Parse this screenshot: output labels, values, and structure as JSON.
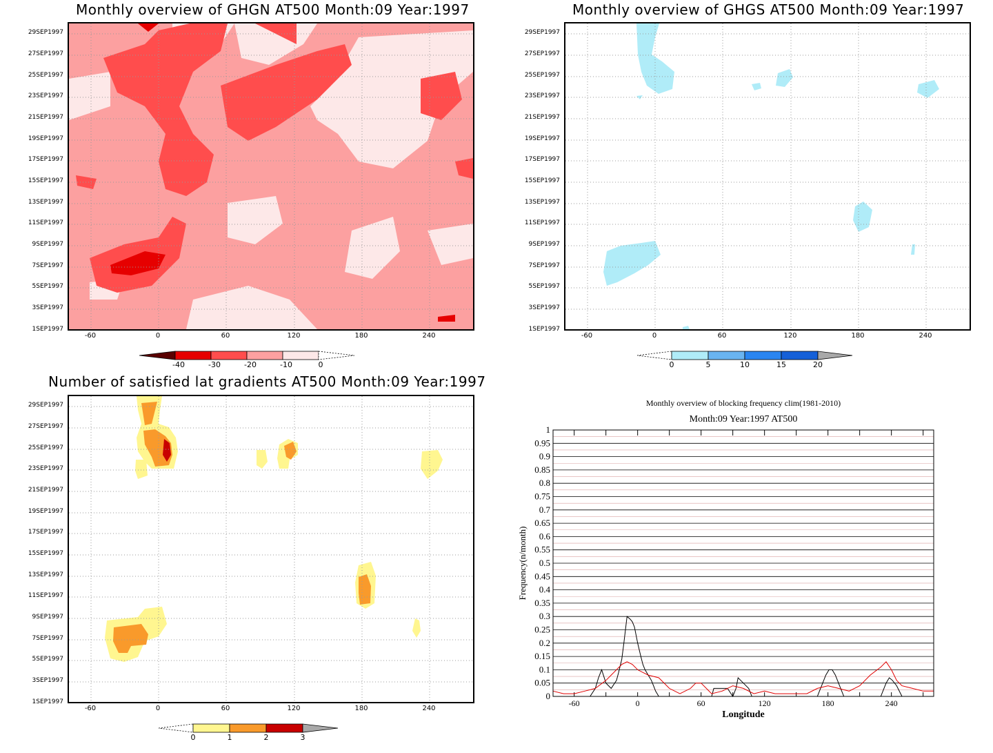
{
  "chart_data": [
    {
      "type": "heatmap",
      "title": "Monthly overview of GHGN AT500 Month:09 Year:1997",
      "x_ticks": [
        "-60",
        "0",
        "60",
        "120",
        "180",
        "240"
      ],
      "y_ticks": [
        "1SEP1997",
        "3SEP1997",
        "5SEP1997",
        "7SEP1997",
        "9SEP1997",
        "11SEP1997",
        "13SEP1997",
        "15SEP1997",
        "17SEP1997",
        "19SEP1997",
        "21SEP1997",
        "23SEP1997",
        "25SEP1997",
        "27SEP1997",
        "29SEP1997"
      ],
      "colorbar": [
        "-40",
        "-30",
        "-20",
        "-10",
        "0"
      ],
      "colors": [
        "#5a0000",
        "#e60000",
        "#ff4d4d",
        "#fca0a0",
        "#fde8e8"
      ],
      "grid": true
    },
    {
      "type": "heatmap",
      "title": "Monthly overview of GHGS AT500 Month:09 Year:1997",
      "x_ticks": [
        "-60",
        "0",
        "60",
        "120",
        "180",
        "240"
      ],
      "y_ticks": [
        "1SEP1997",
        "3SEP1997",
        "5SEP1997",
        "7SEP1997",
        "9SEP1997",
        "11SEP1997",
        "13SEP1997",
        "15SEP1997",
        "17SEP1997",
        "19SEP1997",
        "21SEP1997",
        "23SEP1997",
        "25SEP1997",
        "27SEP1997",
        "29SEP1997"
      ],
      "colorbar": [
        "0",
        "5",
        "10",
        "15",
        "20"
      ],
      "colors": [
        "#b0ecf8",
        "#6ab4f0",
        "#2a85f0",
        "#1560d8",
        "#a9a9a9"
      ],
      "grid": true
    },
    {
      "type": "heatmap",
      "title": "Number of satisfied lat gradients AT500 Month:09 Year:1997",
      "x_ticks": [
        "-60",
        "0",
        "60",
        "120",
        "180",
        "240"
      ],
      "y_ticks": [
        "1SEP1997",
        "3SEP1997",
        "5SEP1997",
        "7SEP1997",
        "9SEP1997",
        "11SEP1997",
        "13SEP1997",
        "15SEP1997",
        "17SEP1997",
        "19SEP1997",
        "21SEP1997",
        "23SEP1997",
        "25SEP1997",
        "27SEP1997",
        "29SEP1997"
      ],
      "colorbar": [
        "0",
        "1",
        "2",
        "3"
      ],
      "colors": [
        "#fff690",
        "#f99a2b",
        "#c80000",
        "#a9a9a9"
      ],
      "grid": true
    },
    {
      "type": "line",
      "title": "Monthly overview of blocking frequency clim(1981-2010)",
      "subtitle": "Month:09 Year:1997  AT500",
      "xlabel": "Longitude",
      "ylabel": "Frequency(n/month)",
      "x_ticks": [
        "-60",
        "0",
        "60",
        "120",
        "180",
        "240"
      ],
      "y_ticks": [
        "0",
        "0.05",
        "0.1",
        "0.15",
        "0.2",
        "0.25",
        "0.3",
        "0.35",
        "0.4",
        "0.45",
        "0.5",
        "0.55",
        "0.6",
        "0.65",
        "0.7",
        "0.75",
        "0.8",
        "0.85",
        "0.9",
        "0.95",
        "1"
      ],
      "xlim": [
        -80,
        280
      ],
      "ylim": [
        0,
        1
      ],
      "series": [
        {
          "color": "#000000",
          "x": [
            -80,
            -45,
            -40,
            -37,
            -34,
            -30,
            -25,
            -20,
            -18,
            -15,
            -13,
            -10,
            -7,
            -5,
            -3,
            0,
            3,
            5,
            7,
            10,
            13,
            15,
            17,
            20,
            25,
            30,
            70,
            72,
            75,
            80,
            85,
            90,
            93,
            95,
            100,
            105,
            108,
            110,
            115,
            170,
            173,
            175,
            178,
            181,
            184,
            187,
            190,
            195,
            230,
            233,
            235,
            238,
            241,
            245,
            250,
            280
          ],
          "y": [
            0,
            0,
            0.03,
            0.07,
            0.1,
            0.05,
            0.03,
            0.06,
            0.09,
            0.14,
            0.2,
            0.3,
            0.29,
            0.28,
            0.26,
            0.2,
            0.15,
            0.12,
            0.1,
            0.08,
            0.06,
            0.04,
            0.02,
            0,
            0,
            0,
            0,
            0.03,
            0.03,
            0.03,
            0.03,
            0,
            0.03,
            0.07,
            0.05,
            0.03,
            0,
            0,
            0,
            0,
            0.03,
            0.05,
            0.08,
            0.1,
            0.1,
            0.08,
            0.05,
            0,
            0,
            0.03,
            0.05,
            0.07,
            0.06,
            0.04,
            0,
            0
          ]
        },
        {
          "color": "#e00000",
          "x": [
            -80,
            -70,
            -60,
            -50,
            -40,
            -30,
            -25,
            -20,
            -15,
            -10,
            -5,
            0,
            5,
            10,
            20,
            30,
            40,
            50,
            55,
            60,
            65,
            70,
            80,
            90,
            100,
            110,
            120,
            130,
            140,
            150,
            160,
            170,
            180,
            190,
            200,
            210,
            220,
            230,
            235,
            240,
            245,
            250,
            260,
            270,
            280
          ],
          "y": [
            0.02,
            0.01,
            0.01,
            0.02,
            0.03,
            0.06,
            0.08,
            0.1,
            0.12,
            0.13,
            0.12,
            0.1,
            0.09,
            0.08,
            0.07,
            0.03,
            0.01,
            0.03,
            0.05,
            0.05,
            0.03,
            0.01,
            0.02,
            0.04,
            0.03,
            0.01,
            0.02,
            0.01,
            0.01,
            0.01,
            0.01,
            0.03,
            0.04,
            0.03,
            0.02,
            0.04,
            0.08,
            0.11,
            0.13,
            0.1,
            0.06,
            0.04,
            0.03,
            0.02,
            0.02
          ]
        }
      ],
      "grid": true
    }
  ]
}
